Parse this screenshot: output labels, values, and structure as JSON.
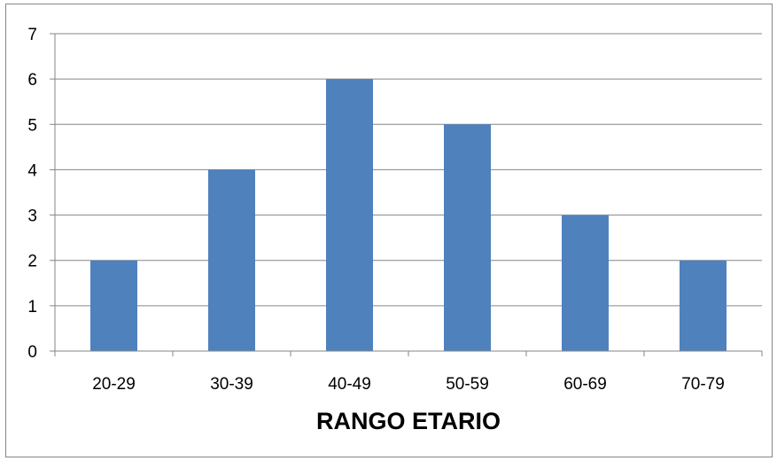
{
  "chart_data": {
    "type": "bar",
    "categories": [
      "20-29",
      "30-39",
      "40-49",
      "50-59",
      "60-69",
      "70-79"
    ],
    "series": [
      {
        "values": [
          2,
          4,
          6,
          5,
          3,
          2
        ]
      }
    ],
    "title": "",
    "xlabel": "RANGO ETARIO",
    "ylabel": "",
    "ylim": [
      0,
      7
    ],
    "yticks": [
      0,
      1,
      2,
      3,
      4,
      5,
      6,
      7
    ],
    "grid": true,
    "legend": "none",
    "colors": {
      "bar": "#4F81BD",
      "grid": "#868686",
      "axis": "#868686"
    }
  }
}
